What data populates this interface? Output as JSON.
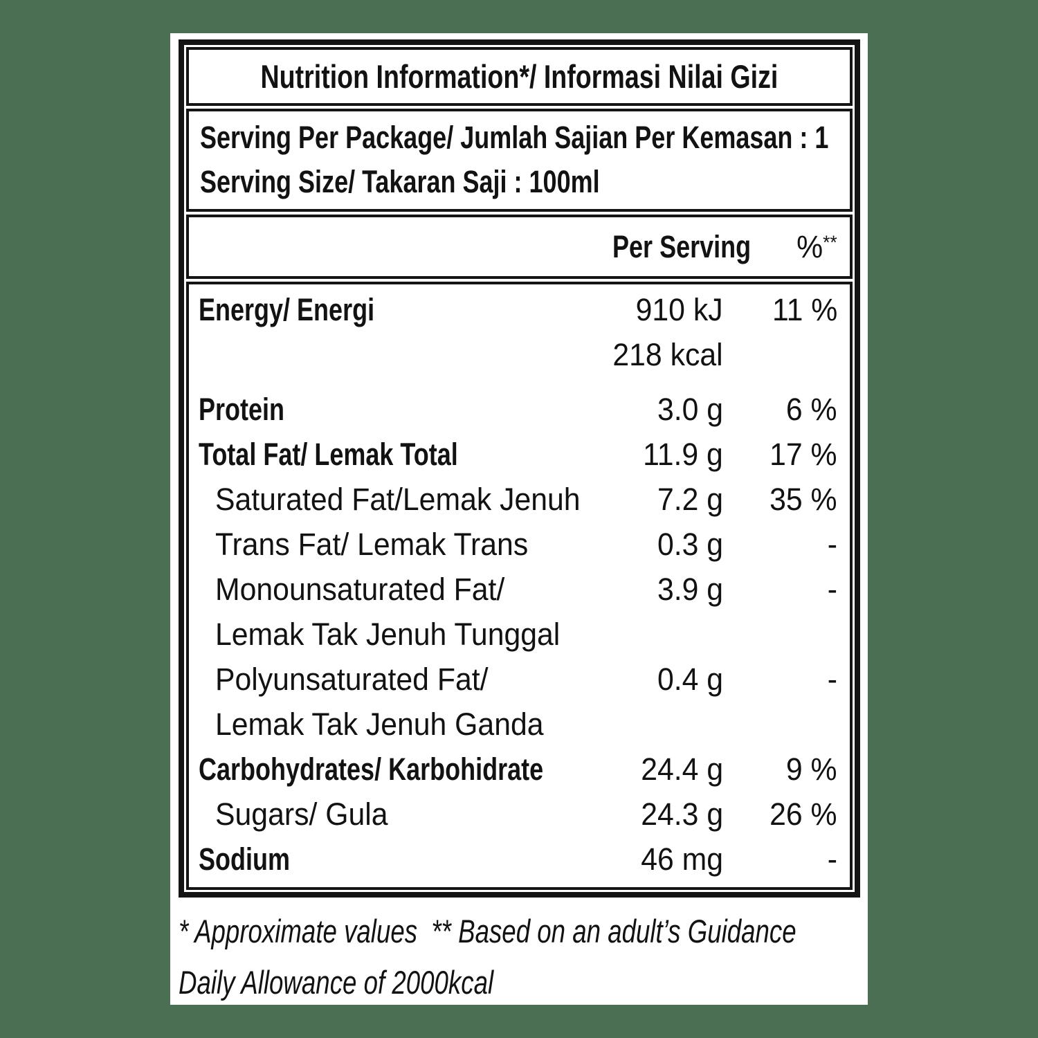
{
  "page": {
    "background_color": "#4b6f52",
    "label_background": "#ffffff",
    "border_color": "#141414",
    "text_color": "#121212"
  },
  "label": {
    "title": "Nutrition Information*/ Informasi Nilai Gizi",
    "serving": {
      "line1": "Serving Per Package/ Jumlah Sajian Per Kemasan : 1",
      "line2": "Serving Size/ Takaran Saji : 100ml"
    },
    "columns": {
      "per_serving": "Per Serving",
      "percent_symbol": "%",
      "percent_marker": "**"
    },
    "rows": [
      {
        "name": "Energy/ Energi",
        "value": "910 kJ",
        "percent": "11 %",
        "emphasis": "bold",
        "indent": false
      },
      {
        "name": "",
        "value": "218 kcal",
        "percent": "",
        "emphasis": "regular",
        "indent": false
      },
      {
        "name": "Protein",
        "value": "3.0 g",
        "percent": "6 %",
        "emphasis": "bold",
        "indent": false
      },
      {
        "name": "Total Fat/ Lemak Total",
        "value": "11.9 g",
        "percent": "17 %",
        "emphasis": "bold",
        "indent": false
      },
      {
        "name": "Saturated Fat/Lemak Jenuh",
        "value": "7.2 g",
        "percent": "35 %",
        "emphasis": "regular",
        "indent": true
      },
      {
        "name": "Trans Fat/ Lemak Trans",
        "value": "0.3 g",
        "percent": "-",
        "emphasis": "regular",
        "indent": true
      },
      {
        "name": "Monounsaturated Fat/",
        "value": "3.9 g",
        "percent": "-",
        "emphasis": "regular",
        "indent": true
      },
      {
        "name": "Lemak Tak Jenuh Tunggal",
        "value": "",
        "percent": "",
        "emphasis": "regular",
        "indent": true
      },
      {
        "name": "Polyunsaturated Fat/",
        "value": "0.4 g",
        "percent": "-",
        "emphasis": "regular",
        "indent": true
      },
      {
        "name": "Lemak Tak Jenuh Ganda",
        "value": "",
        "percent": "",
        "emphasis": "regular",
        "indent": true
      },
      {
        "name": "Carbohydrates/ Karbohidrate",
        "value": "24.4 g",
        "percent": "9 %",
        "emphasis": "bold",
        "indent": false
      },
      {
        "name": "Sugars/ Gula",
        "value": "24.3 g",
        "percent": "26 %",
        "emphasis": "regular",
        "indent": true
      },
      {
        "name": "Sodium",
        "value": "46 mg",
        "percent": "-",
        "emphasis": "bold",
        "indent": false
      }
    ],
    "footnote": {
      "line1": "* Approximate values  ** Based on an adult’s Guidance",
      "line2": "Daily Allowance of 2000kcal"
    }
  }
}
